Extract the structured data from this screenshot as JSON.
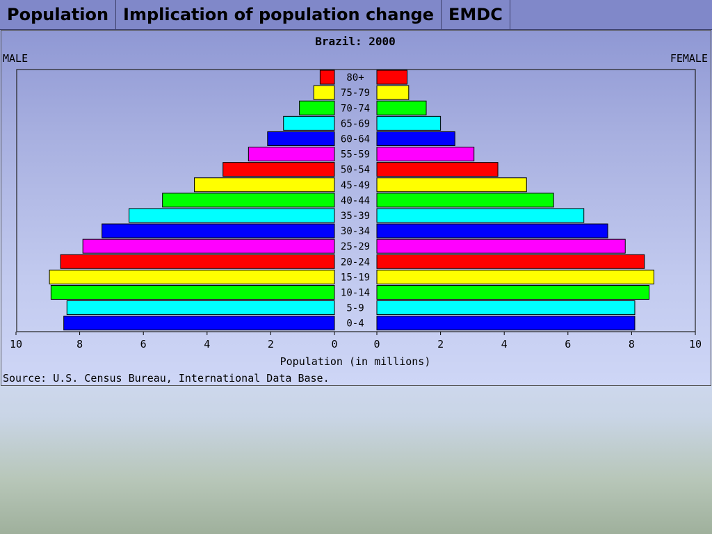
{
  "tabs": [
    {
      "label": "Population"
    },
    {
      "label": "Implication of population change"
    },
    {
      "label": "EMDC"
    }
  ],
  "colors": {
    "band_cycle": [
      "#0000ff",
      "#00ffff",
      "#00ff00",
      "#ffff00",
      "#ff0000",
      "#ff00ff"
    ]
  },
  "chart_data": {
    "type": "bar",
    "subtype": "population-pyramid",
    "title": "Brazil: 2000",
    "left_label": "MALE",
    "right_label": "FEMALE",
    "xlabel": "Population (in millions)",
    "source": "Source: U.S. Census Bureau, International Data Base.",
    "xlim": [
      0,
      10
    ],
    "xticks": [
      "0",
      "2",
      "4",
      "6",
      "8",
      "10"
    ],
    "categories": [
      "0-4",
      "5-9",
      "10-14",
      "15-19",
      "20-24",
      "25-29",
      "30-34",
      "35-39",
      "40-44",
      "45-49",
      "50-54",
      "55-59",
      "60-64",
      "65-69",
      "70-74",
      "75-79",
      "80+"
    ],
    "series": [
      {
        "name": "MALE",
        "values": [
          8.5,
          8.4,
          8.9,
          8.95,
          8.6,
          7.9,
          7.3,
          6.45,
          5.4,
          4.4,
          3.5,
          2.7,
          2.1,
          1.6,
          1.1,
          0.65,
          0.45
        ]
      },
      {
        "name": "FEMALE",
        "values": [
          8.1,
          8.1,
          8.55,
          8.7,
          8.4,
          7.8,
          7.25,
          6.5,
          5.55,
          4.7,
          3.8,
          3.05,
          2.45,
          2.0,
          1.55,
          1.0,
          0.95
        ]
      }
    ],
    "grid": false
  }
}
